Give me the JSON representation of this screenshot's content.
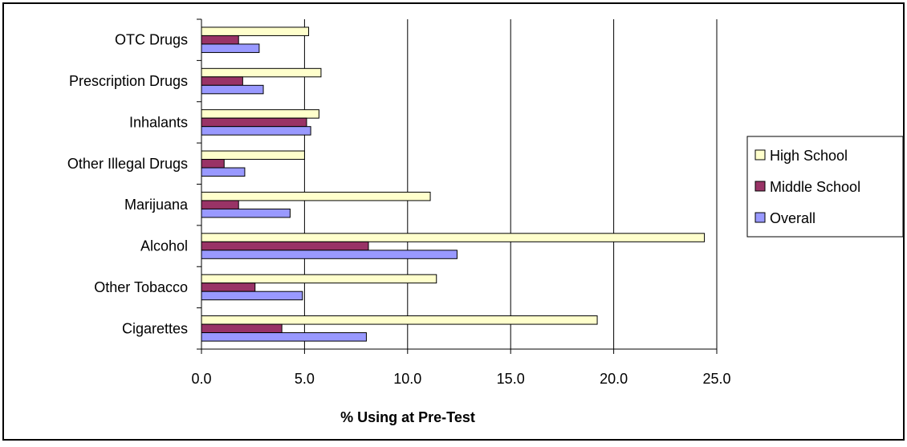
{
  "chart_data": {
    "type": "bar",
    "orientation": "horizontal",
    "title": "",
    "xlabel": "% Using at Pre-Test",
    "ylabel": "",
    "xlim": [
      0,
      25
    ],
    "x_ticks": [
      "0.0",
      "5.0",
      "10.0",
      "15.0",
      "20.0",
      "25.0"
    ],
    "grid": "vertical gridlines at major ticks",
    "legend_position": "right",
    "categories": [
      "OTC Drugs",
      "Prescription Drugs",
      "Inhalants",
      "Other Illegal Drugs",
      "Marijuana",
      "Alcohol",
      "Other Tobacco",
      "Cigarettes"
    ],
    "series": [
      {
        "name": "High School",
        "color": "#FFFFCC",
        "values": [
          5.2,
          5.8,
          5.7,
          5.0,
          11.1,
          24.4,
          11.4,
          19.2
        ]
      },
      {
        "name": "Middle School",
        "color": "#993366",
        "values": [
          1.8,
          2.0,
          5.1,
          1.1,
          1.8,
          8.1,
          2.6,
          3.9
        ]
      },
      {
        "name": "Overall",
        "color": "#9999FF",
        "values": [
          2.8,
          3.0,
          5.3,
          2.1,
          4.3,
          12.4,
          4.9,
          8.0
        ]
      }
    ]
  }
}
